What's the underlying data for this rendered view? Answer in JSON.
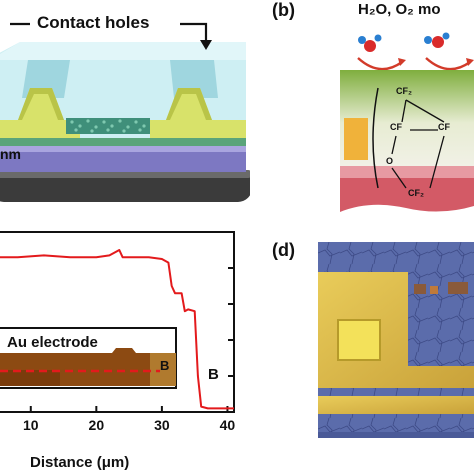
{
  "panel_a": {
    "annotation_contact_holes": "Contact holes",
    "annotation_nm": "nm"
  },
  "panel_b": {
    "label": "(b)",
    "annotation_gases": "H₂O, O₂ mo",
    "chem_cf2_top": "CF₂",
    "chem_cf_left": "CF",
    "chem_cf_right": "CF",
    "chem_o": "O",
    "chem_cf2_bottom": "CF₂"
  },
  "panel_c": {
    "inset_label": "Au electrode",
    "inset_marker_b": "B",
    "point_label_b": "B",
    "xlabel": "Distance (μm)",
    "x_ticks": [
      "10",
      "20",
      "30",
      "40"
    ]
  },
  "panel_d": {
    "label": "(d)"
  },
  "chart_data": {
    "type": "line",
    "title": "",
    "xlabel": "Distance (μm)",
    "ylabel": "",
    "xlim": [
      5,
      41
    ],
    "ylim": [
      0,
      1
    ],
    "x_ticks": [
      10,
      20,
      30,
      40
    ],
    "grid": false,
    "legend": "none",
    "series": [
      {
        "color": "#e31a1c",
        "x": [
          5,
          8,
          12,
          16,
          20,
          22,
          23.5,
          24,
          25,
          28,
          30,
          31,
          31.5,
          32,
          33,
          33.5,
          34,
          35,
          35.5,
          36,
          37,
          38,
          40,
          41
        ],
        "y": [
          0.86,
          0.86,
          0.87,
          0.86,
          0.86,
          0.87,
          0.9,
          0.86,
          0.86,
          0.86,
          0.85,
          0.83,
          0.7,
          0.66,
          0.66,
          0.56,
          0.57,
          0.56,
          0.2,
          0.03,
          0.02,
          0.02,
          0.02,
          0.02
        ]
      }
    ]
  },
  "colors": {
    "substrate_dark": "#3a3a3a",
    "dielectric_purple": "#7d78c2",
    "glass_cyan": "#bfe8ee",
    "electrode_yellow": "#d8e26a",
    "line_red": "#e31a1c",
    "gold": "#e6c34a",
    "blue_substrate": "#5a6aa8"
  }
}
